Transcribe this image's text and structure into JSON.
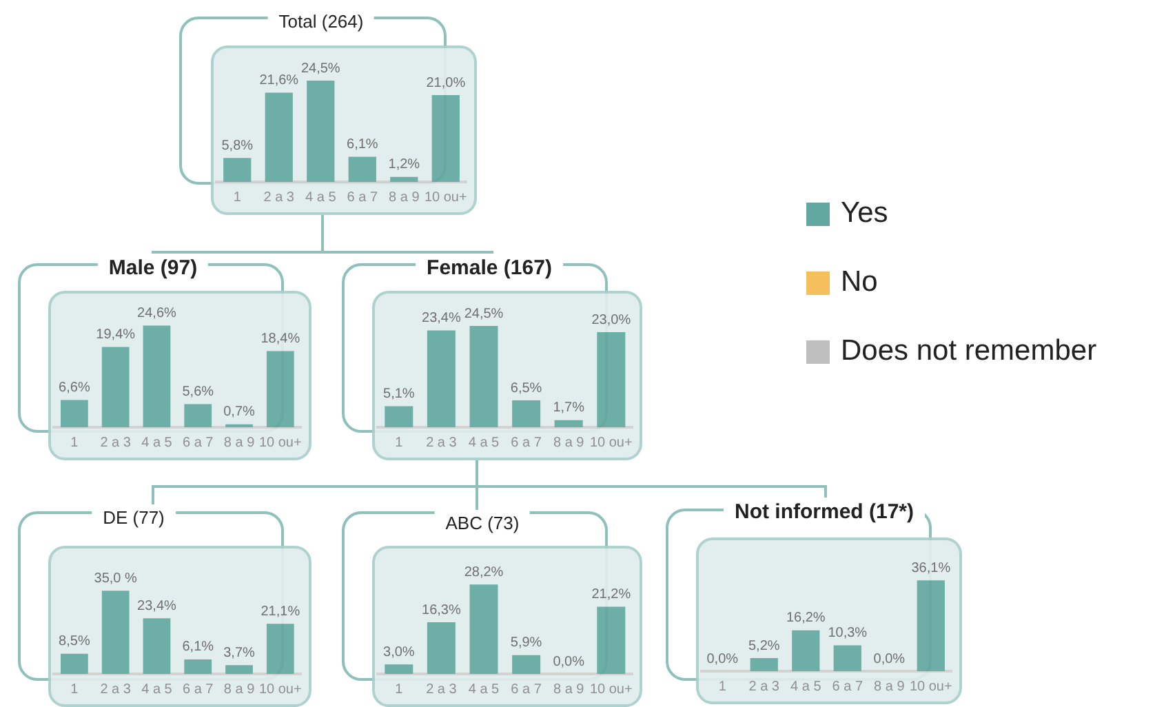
{
  "chart_data": [
    {
      "type": "bar",
      "title": "Total (264)",
      "categories": [
        "1",
        "2 a 3",
        "4 a 5",
        "6 a 7",
        "8 a 9",
        "10 ou+"
      ],
      "legend": "right",
      "tick_labels": "x",
      "grid": false,
      "series": [
        {
          "name": "Yes",
          "color": "#62a8a0",
          "values": [
            5.8,
            21.6,
            24.5,
            6.1,
            1.2,
            21.0
          ],
          "value_labels": [
            "5,8%",
            "21,6%",
            "24,5%",
            "6,1%",
            "1,2%",
            "21,0%"
          ]
        },
        {
          "name": "No",
          "color": "#f5bf5b",
          "values": [
            null,
            null,
            null,
            null,
            null,
            null
          ]
        },
        {
          "name": "Does not remember",
          "color": "#bfbfbf",
          "values": [
            null,
            null,
            null,
            null,
            null,
            null
          ]
        }
      ]
    },
    {
      "type": "bar",
      "title": "Male (97)",
      "categories": [
        "1",
        "2 a 3",
        "4 a 5",
        "6 a 7",
        "8 a 9",
        "10 ou+"
      ],
      "tick_labels": "x",
      "grid": false,
      "series": [
        {
          "color": "#62a8a0",
          "values": [
            6.6,
            19.4,
            24.6,
            5.6,
            0.7,
            18.4
          ],
          "value_labels": [
            "6,6%",
            "19,4%",
            "24,6%",
            "5,6%",
            "0,7%",
            "18,4%"
          ]
        }
      ]
    },
    {
      "type": "bar",
      "title": "Female (167)",
      "categories": [
        "1",
        "2 a 3",
        "4 a 5",
        "6 a 7",
        "8 a 9",
        "10 ou+"
      ],
      "tick_labels": "x",
      "grid": false,
      "series": [
        {
          "color": "#62a8a0",
          "values": [
            5.1,
            23.4,
            24.5,
            6.5,
            1.7,
            23.0
          ],
          "value_labels": [
            "5,1%",
            "23,4%",
            "24,5%",
            "6,5%",
            "1,7%",
            "23,0%"
          ]
        }
      ]
    },
    {
      "type": "bar",
      "title": "DE (77)",
      "categories": [
        "1",
        "2 a 3",
        "4 a 5",
        "6 a 7",
        "8 a 9",
        "10 ou+"
      ],
      "tick_labels": "x",
      "grid": false,
      "series": [
        {
          "color": "#62a8a0",
          "values": [
            8.5,
            35.0,
            23.4,
            6.1,
            3.7,
            21.1
          ],
          "value_labels": [
            "8,5%",
            "35,0 %",
            "23,4%",
            "6,1%",
            "3,7%",
            "21,1%"
          ]
        }
      ]
    },
    {
      "type": "bar",
      "title": "ABC (73)",
      "categories": [
        "1",
        "2 a 3",
        "4 a 5",
        "6 a 7",
        "8 a 9",
        "10 ou+"
      ],
      "tick_labels": "x",
      "grid": false,
      "series": [
        {
          "color": "#62a8a0",
          "values": [
            3.0,
            16.3,
            28.2,
            5.9,
            0.0,
            21.2
          ],
          "value_labels": [
            "3,0%",
            "16,3%",
            "28,2%",
            "5,9%",
            "0,0%",
            "21,2%"
          ]
        }
      ]
    },
    {
      "type": "bar",
      "title": "Not informed (17*)",
      "categories": [
        "1",
        "2 a 3",
        "4 a 5",
        "6 a 7",
        "8 a 9",
        "10 ou+"
      ],
      "tick_labels": "x",
      "grid": false,
      "series": [
        {
          "color": "#62a8a0",
          "values": [
            0.0,
            5.2,
            16.2,
            10.3,
            0.0,
            36.1
          ],
          "value_labels": [
            "0,0%",
            "5,2%",
            "16,2%",
            "10,3%",
            "0,0%",
            "36,1%"
          ]
        }
      ]
    }
  ]
}
